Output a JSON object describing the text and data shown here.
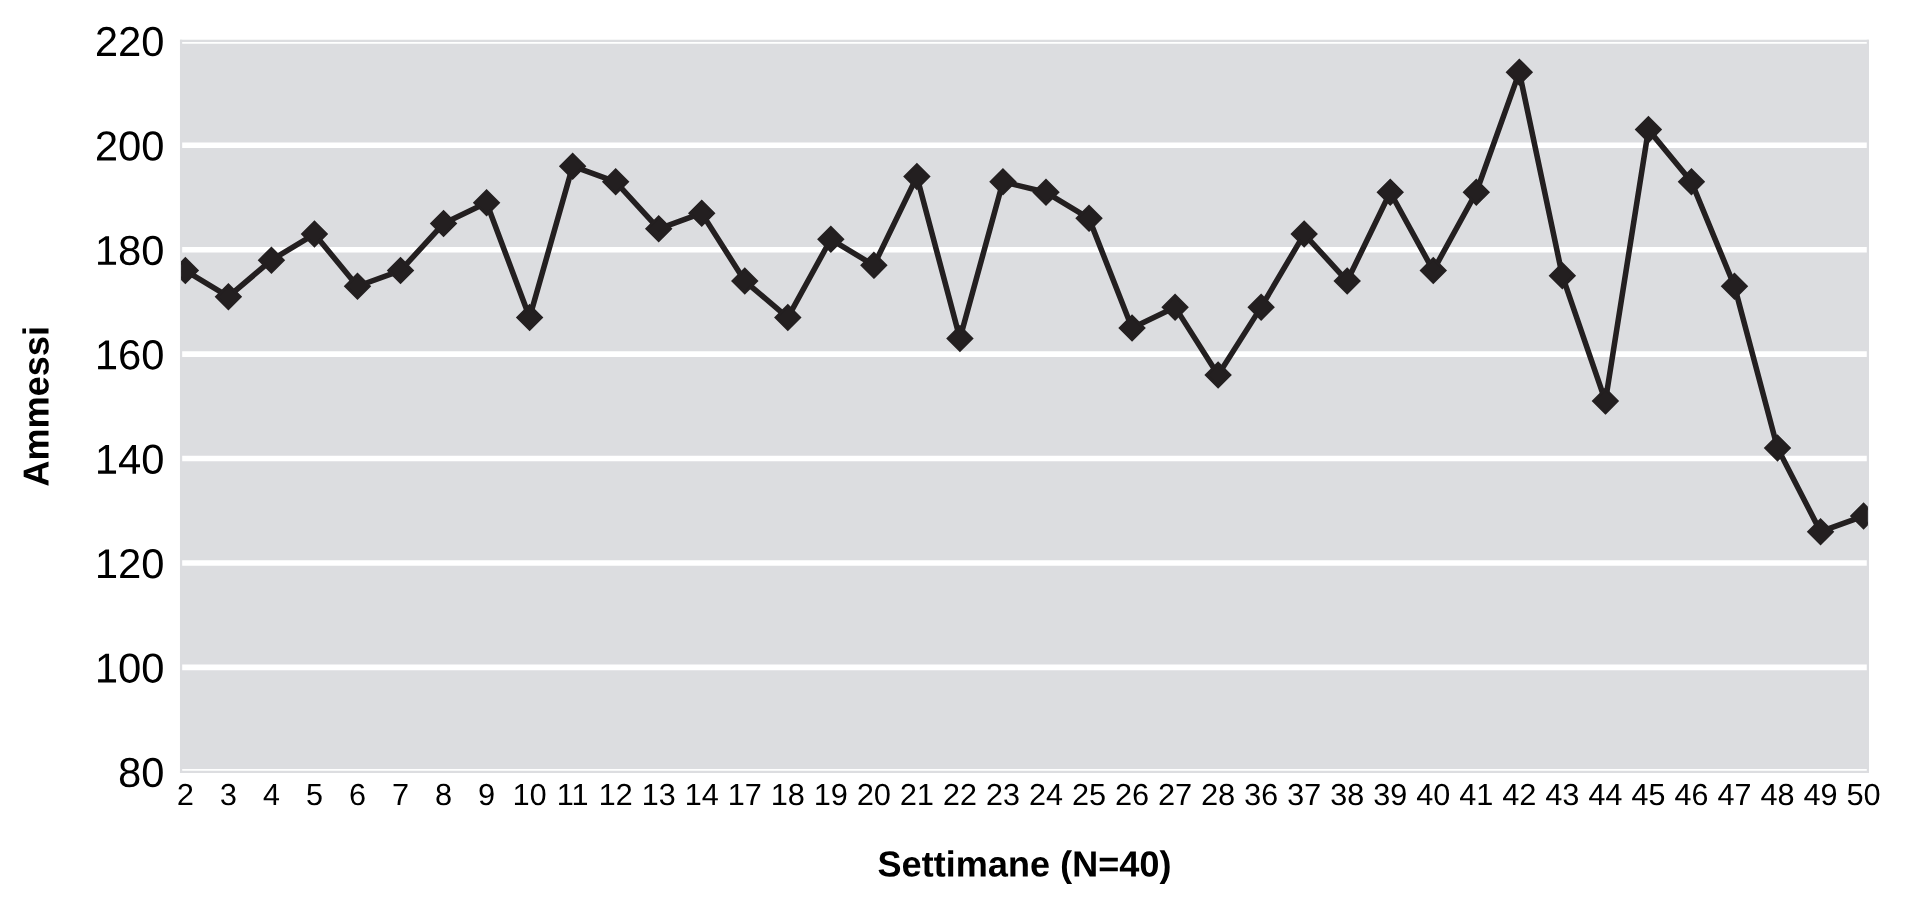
{
  "chart_data": {
    "type": "line",
    "xlabel": "Settimane (N=40)",
    "ylabel": "Ammessi",
    "categories": [
      "2",
      "3",
      "4",
      "5",
      "6",
      "7",
      "8",
      "9",
      "10",
      "11",
      "12",
      "13",
      "14",
      "17",
      "18",
      "19",
      "20",
      "21",
      "22",
      "23",
      "24",
      "25",
      "26",
      "27",
      "28",
      "36",
      "37",
      "38",
      "39",
      "40",
      "41",
      "42",
      "43",
      "44",
      "45",
      "46",
      "47",
      "48",
      "49",
      "50"
    ],
    "series": [
      {
        "color": "#231f20",
        "values": [
          176,
          171,
          178,
          183,
          173,
          176,
          185,
          189,
          167,
          196,
          193,
          184,
          187,
          174,
          167,
          182,
          177,
          194,
          163,
          193,
          191,
          186,
          165,
          169,
          156,
          169,
          183,
          174,
          191,
          176,
          191,
          214,
          175,
          151,
          203,
          193,
          173,
          142,
          126,
          129
        ]
      }
    ],
    "ylim": [
      80,
      220
    ],
    "yticks": [
      80,
      100,
      120,
      140,
      160,
      180,
      200,
      220
    ],
    "grid": "y",
    "marker": "diamond",
    "line_style": "solid"
  }
}
